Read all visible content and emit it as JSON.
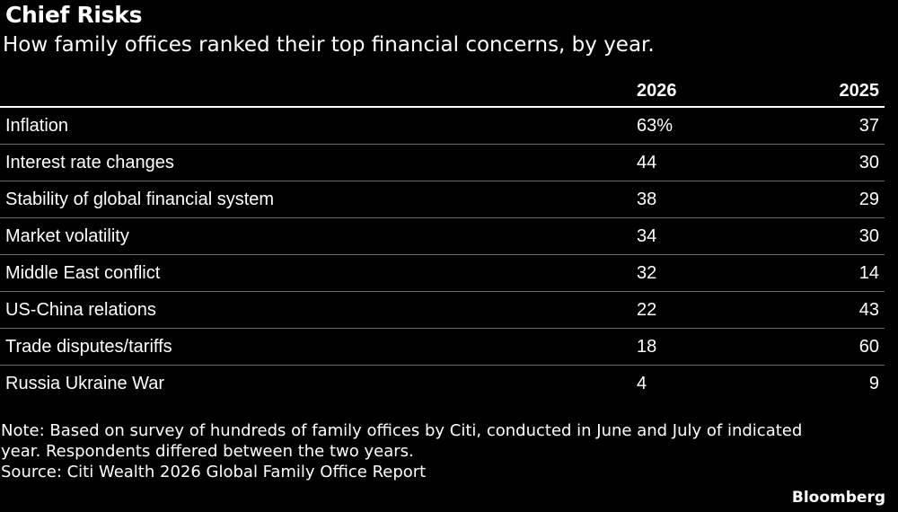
{
  "chart_data": {
    "type": "table",
    "title": "Chief Risks",
    "subtitle": "How family offices ranked their top financial concerns, by year.",
    "columns": [
      "",
      "2026",
      "2025"
    ],
    "rows": [
      {
        "label": "Inflation",
        "v2026": "63%",
        "v2025": "37"
      },
      {
        "label": "Interest rate changes",
        "v2026": "44",
        "v2025": "30"
      },
      {
        "label": "Stability of global financial system",
        "v2026": "38",
        "v2025": "29"
      },
      {
        "label": "Market volatility",
        "v2026": "34",
        "v2025": "30"
      },
      {
        "label": "Middle East conflict",
        "v2026": "32",
        "v2025": "14"
      },
      {
        "label": "US-China relations",
        "v2026": "22",
        "v2025": "43"
      },
      {
        "label": "Trade disputes/tariffs",
        "v2026": "18",
        "v2025": "60"
      },
      {
        "label": "Russia Ukraine War",
        "v2026": "4",
        "v2025": "9"
      }
    ],
    "notes": [
      "Note: Based on survey of hundreds of family offices by Citi, conducted in June and July of indicated",
      "year. Respondents differed between the two years.",
      "Source: Citi Wealth 2026 Global Family Office Report"
    ],
    "brand": "Bloomberg"
  },
  "colors": {
    "background": "#000000",
    "text": "#ffffff",
    "divider": "#6a6a6a"
  }
}
